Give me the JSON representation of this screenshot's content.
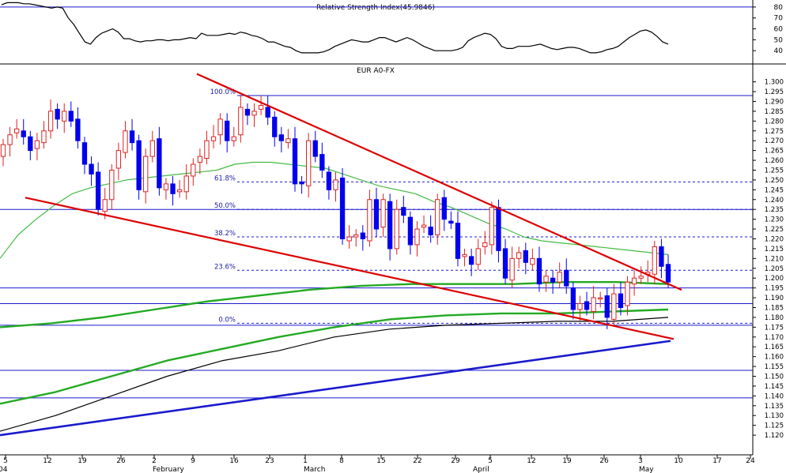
{
  "chart_data": [
    {
      "type": "line",
      "title": "Relative Strength Index(45.9846)",
      "ylim": [
        30,
        85
      ],
      "yticks": [
        40,
        50,
        60,
        70,
        80
      ],
      "reference_line": 80,
      "values": [
        82,
        84,
        84,
        84,
        83,
        83,
        82,
        81,
        80,
        79,
        80,
        79,
        70,
        64,
        56,
        48,
        46,
        52,
        56,
        58,
        60,
        57,
        51,
        51,
        49,
        48,
        49,
        49,
        50,
        50,
        49,
        50,
        50,
        51,
        52,
        51,
        56,
        54,
        54,
        54,
        55,
        56,
        55,
        57,
        56,
        54,
        53,
        51,
        48,
        48,
        46,
        44,
        43,
        40,
        38,
        38,
        38,
        38,
        39,
        41,
        44,
        46,
        48,
        50,
        49,
        48,
        48,
        50,
        52,
        52,
        50,
        48,
        50,
        52,
        50,
        47,
        44,
        42,
        40,
        40,
        40,
        40,
        41,
        43,
        49,
        52,
        54,
        56,
        55,
        51,
        44,
        42,
        42,
        44,
        44,
        44,
        45,
        46,
        44,
        42,
        41,
        42,
        43,
        43,
        42,
        40,
        38,
        38,
        39,
        41,
        42,
        44,
        48,
        52,
        55,
        58,
        59,
        57,
        53,
        48,
        46
      ]
    },
    {
      "type": "candlestick",
      "title": "EUR A0-FX",
      "ylim": [
        1.118,
        1.305
      ],
      "yticks": [
        "1.120",
        "1.125",
        "1.130",
        "1.135",
        "1.140",
        "1.145",
        "1.150",
        "1.155",
        "1.160",
        "1.165",
        "1.170",
        "1.175",
        "1.180",
        "1.185",
        "1.190",
        "1.195",
        "1.200",
        "1.205",
        "1.210",
        "1.215",
        "1.220",
        "1.225",
        "1.230",
        "1.235",
        "1.240",
        "1.245",
        "1.250",
        "1.255",
        "1.260",
        "1.265",
        "1.270",
        "1.275",
        "1.280",
        "1.285",
        "1.290",
        "1.295",
        "1.300"
      ],
      "x_tick_labels": [
        "5",
        "12",
        "19",
        "26",
        "2",
        "9",
        "16",
        "23",
        "1",
        "8",
        "15",
        "22",
        "29",
        "5",
        "12",
        "19",
        "26",
        "3",
        "10",
        "17",
        "24"
      ],
      "month_labels": [
        "04",
        "February",
        "March",
        "April",
        "May"
      ],
      "close": [
        1.268,
        1.273,
        1.276,
        1.272,
        1.265,
        1.27,
        1.275,
        1.285,
        1.281,
        1.285,
        1.28,
        1.27,
        1.258,
        1.253,
        1.235,
        1.24,
        1.255,
        1.265,
        1.275,
        1.269,
        1.245,
        1.262,
        1.27,
        1.246,
        1.248,
        1.243,
        1.245,
        1.252,
        1.258,
        1.262,
        1.27,
        1.272,
        1.281,
        1.27,
        1.272,
        1.287,
        1.283,
        1.285,
        1.288,
        1.282,
        1.272,
        1.27,
        1.271,
        1.248,
        1.248,
        1.27,
        1.262,
        1.255,
        1.245,
        1.25,
        1.22,
        1.221,
        1.222,
        1.22,
        1.24,
        1.225,
        1.24,
        1.215,
        1.235,
        1.232,
        1.217,
        1.225,
        1.227,
        1.222,
        1.24,
        1.23,
        1.228,
        1.21,
        1.212,
        1.207,
        1.215,
        1.218,
        1.236,
        1.214,
        1.2,
        1.21,
        1.213,
        1.208,
        1.21,
        1.197,
        1.201,
        1.198,
        1.203,
        1.196,
        1.184,
        1.187,
        1.184,
        1.19,
        1.19,
        1.18,
        1.192,
        1.185,
        1.198,
        1.2,
        1.201,
        1.203,
        1.216,
        1.206,
        1.198
      ],
      "ma_fast": [
        1.21,
        1.222,
        1.23,
        1.237,
        1.243,
        1.246,
        1.248,
        1.25,
        1.251,
        1.252,
        1.253,
        1.254,
        1.255,
        1.258,
        1.259,
        1.259,
        1.258,
        1.257,
        1.256,
        1.253,
        1.25,
        1.247,
        1.245,
        1.243,
        1.239,
        1.236,
        1.232,
        1.228,
        1.225,
        1.221,
        1.219,
        1.218,
        1.217,
        1.216,
        1.215,
        1.214,
        1.213,
        1.212
      ],
      "ma_mid": [
        1.175,
        1.177,
        1.18,
        1.184,
        1.188,
        1.191,
        1.194,
        1.196,
        1.197,
        1.197,
        1.197,
        1.198,
        1.198,
        1.197
      ],
      "ma_slow": [
        1.136,
        1.142,
        1.15,
        1.158,
        1.164,
        1.17,
        1.175,
        1.179,
        1.181,
        1.182,
        1.182,
        1.183,
        1.184
      ],
      "ma_black": [
        1.122,
        1.13,
        1.14,
        1.15,
        1.158,
        1.163,
        1.17,
        1.174,
        1.176,
        1.177,
        1.178,
        1.178,
        1.18
      ],
      "fibonacci": [
        {
          "label": "100.0%",
          "price": 1.293
        },
        {
          "label": "61.8%",
          "price": 1.249
        },
        {
          "label": "50.0%",
          "price": 1.235
        },
        {
          "label": "38.2%",
          "price": 1.221
        },
        {
          "label": "23.6%",
          "price": 1.204
        },
        {
          "label": "0.0%",
          "price": 1.177
        }
      ],
      "horizontal_lines": [
        1.235,
        1.195,
        1.187,
        1.176,
        1.153,
        1.139
      ],
      "trendlines": [
        {
          "name": "upper channel",
          "from": 1.304,
          "to": 1.194
        },
        {
          "name": "lower channel",
          "from": 1.241,
          "to": 1.169
        },
        {
          "name": "long-term support",
          "from": 1.12,
          "to": 1.168
        }
      ]
    }
  ],
  "colors": {
    "up_candle": "#dd2222",
    "down_candle": "#0000ee",
    "trend_red": "#dd0000",
    "trend_blue": "#1a1acc",
    "ma_green": "#22aa22",
    "ma_light": "#44bb44",
    "grid_blue": "#1a1acc",
    "fib_text": "#1a1aaa"
  }
}
